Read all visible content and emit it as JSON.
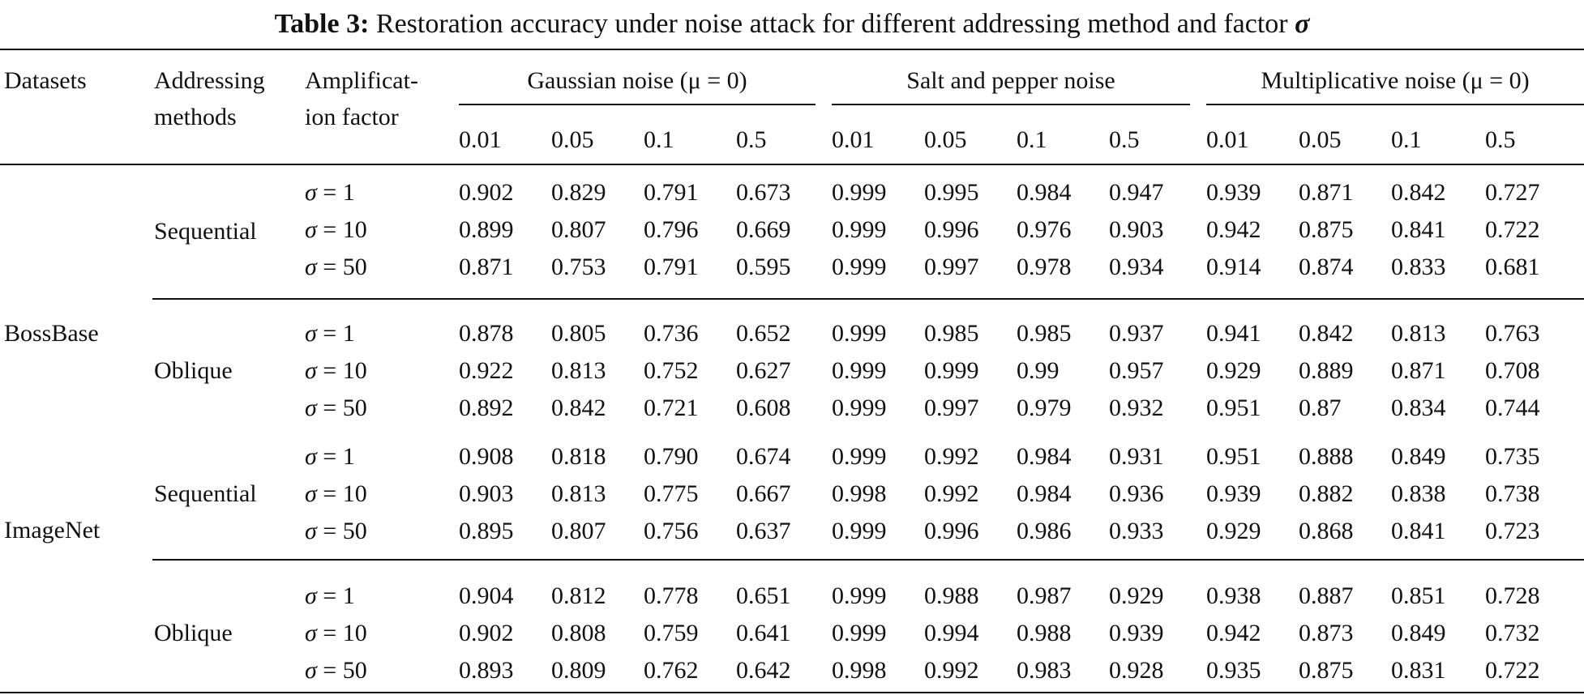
{
  "caption": {
    "label": "Table 3:",
    "text": "Restoration accuracy under noise attack for different addressing method and factor",
    "symbol": "σ"
  },
  "header": {
    "datasets": "Datasets",
    "addressing_line1": "Addressing",
    "addressing_line2": "methods",
    "amplification_line1": "Amplificat-",
    "amplification_line2": "ion factor",
    "groups": [
      "Gaussian noise (μ = 0)",
      "Salt and pepper noise",
      "Multiplicative noise (μ = 0)"
    ],
    "levels": [
      "0.01",
      "0.05",
      "0.1",
      "0.5",
      "0.01",
      "0.05",
      "0.1",
      "0.5",
      "0.01",
      "0.05",
      "0.1",
      "0.5"
    ]
  },
  "datasets": [
    "BossBase",
    "ImageNet"
  ],
  "methods": [
    "Sequential",
    "Oblique",
    "Sequential",
    "Oblique"
  ],
  "sigma_symbol": "σ",
  "sigma_values": [
    "= 1",
    "= 10",
    "= 50"
  ],
  "rows": [
    [
      "0.902",
      "0.829",
      "0.791",
      "0.673",
      "0.999",
      "0.995",
      "0.984",
      "0.947",
      "0.939",
      "0.871",
      "0.842",
      "0.727"
    ],
    [
      "0.899",
      "0.807",
      "0.796",
      "0.669",
      "0.999",
      "0.996",
      "0.976",
      "0.903",
      "0.942",
      "0.875",
      "0.841",
      "0.722"
    ],
    [
      "0.871",
      "0.753",
      "0.791",
      "0.595",
      "0.999",
      "0.997",
      "0.978",
      "0.934",
      "0.914",
      "0.874",
      "0.833",
      "0.681"
    ],
    [
      "0.878",
      "0.805",
      "0.736",
      "0.652",
      "0.999",
      "0.985",
      "0.985",
      "0.937",
      "0.941",
      "0.842",
      "0.813",
      "0.763"
    ],
    [
      "0.922",
      "0.813",
      "0.752",
      "0.627",
      "0.999",
      "0.999",
      "0.99",
      "0.957",
      "0.929",
      "0.889",
      "0.871",
      "0.708"
    ],
    [
      "0.892",
      "0.842",
      "0.721",
      "0.608",
      "0.999",
      "0.997",
      "0.979",
      "0.932",
      "0.951",
      "0.87",
      "0.834",
      "0.744"
    ],
    [
      "0.908",
      "0.818",
      "0.790",
      "0.674",
      "0.999",
      "0.992",
      "0.984",
      "0.931",
      "0.951",
      "0.888",
      "0.849",
      "0.735"
    ],
    [
      "0.903",
      "0.813",
      "0.775",
      "0.667",
      "0.998",
      "0.992",
      "0.984",
      "0.936",
      "0.939",
      "0.882",
      "0.838",
      "0.738"
    ],
    [
      "0.895",
      "0.807",
      "0.756",
      "0.637",
      "0.999",
      "0.996",
      "0.986",
      "0.933",
      "0.929",
      "0.868",
      "0.841",
      "0.723"
    ],
    [
      "0.904",
      "0.812",
      "0.778",
      "0.651",
      "0.999",
      "0.988",
      "0.987",
      "0.929",
      "0.938",
      "0.887",
      "0.851",
      "0.728"
    ],
    [
      "0.902",
      "0.808",
      "0.759",
      "0.641",
      "0.999",
      "0.994",
      "0.988",
      "0.939",
      "0.942",
      "0.873",
      "0.849",
      "0.732"
    ],
    [
      "0.893",
      "0.809",
      "0.762",
      "0.642",
      "0.998",
      "0.992",
      "0.983",
      "0.928",
      "0.935",
      "0.875",
      "0.831",
      "0.722"
    ]
  ]
}
